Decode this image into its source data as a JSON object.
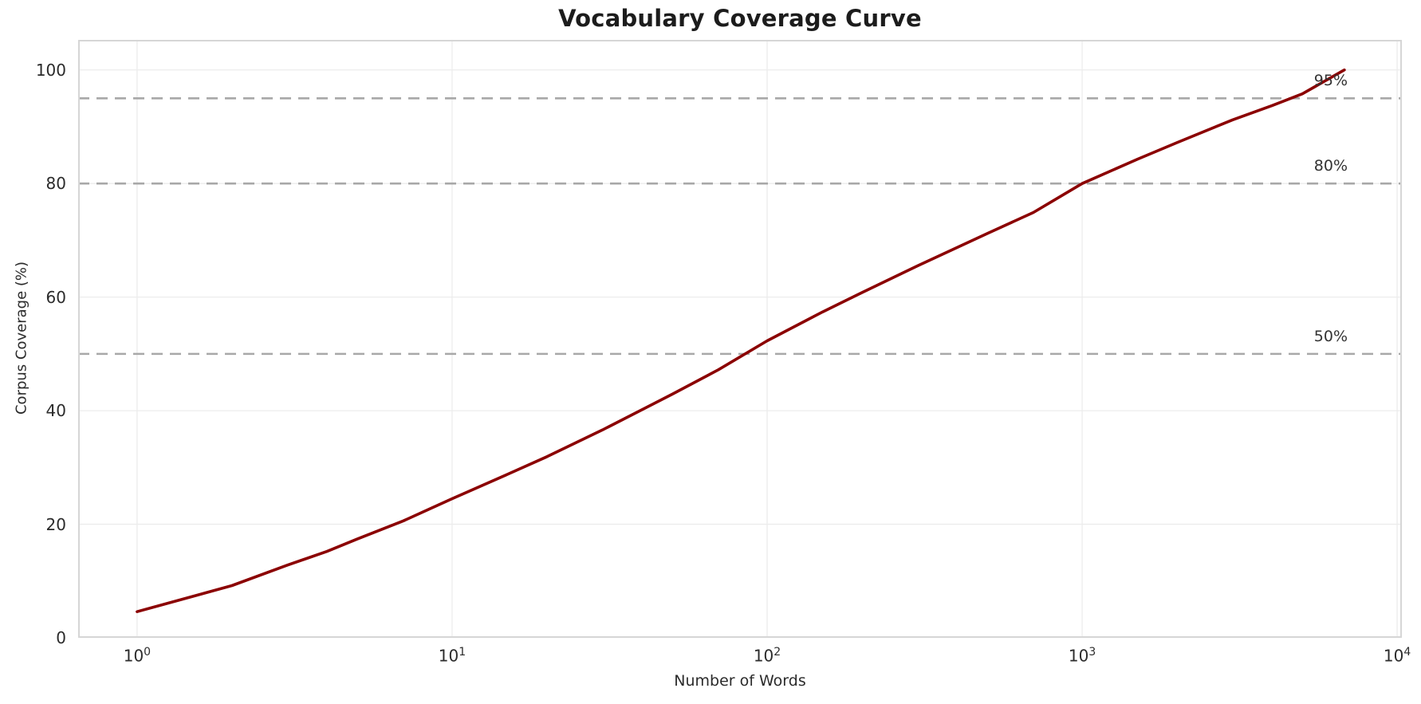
{
  "chart_data": {
    "type": "line",
    "title": "Vocabulary Coverage Curve",
    "xlabel": "Number of Words",
    "ylabel": "Corpus Coverage (%)",
    "x_scale": "log",
    "grid": true,
    "legend": "none",
    "xlim": [
      0.65,
      10350
    ],
    "ylim": [
      0,
      105.3
    ],
    "x_ticks": [
      {
        "value": 1,
        "base": "10",
        "exp": "0"
      },
      {
        "value": 10,
        "base": "10",
        "exp": "1"
      },
      {
        "value": 100,
        "base": "10",
        "exp": "2"
      },
      {
        "value": 1000,
        "base": "10",
        "exp": "3"
      },
      {
        "value": 10000,
        "base": "10",
        "exp": "4"
      }
    ],
    "y_ticks": [
      0,
      20,
      40,
      60,
      80,
      100
    ],
    "series": [
      {
        "name": "coverage",
        "color": "#8B0000",
        "points": [
          [
            1,
            4.6
          ],
          [
            2,
            9.2
          ],
          [
            3,
            12.8
          ],
          [
            4,
            15.2
          ],
          [
            5,
            17.4
          ],
          [
            7,
            20.6
          ],
          [
            10,
            24.5
          ],
          [
            15,
            28.8
          ],
          [
            20,
            31.9
          ],
          [
            30,
            36.6
          ],
          [
            50,
            42.9
          ],
          [
            70,
            47.2
          ],
          [
            100,
            52.3
          ],
          [
            150,
            57.4
          ],
          [
            200,
            60.8
          ],
          [
            300,
            65.5
          ],
          [
            500,
            71.2
          ],
          [
            700,
            74.9
          ],
          [
            1000,
            80.0
          ],
          [
            1500,
            84.3
          ],
          [
            2000,
            87.2
          ],
          [
            3000,
            91.2
          ],
          [
            4000,
            93.7
          ],
          [
            5000,
            95.8
          ],
          [
            6800,
            100.0
          ]
        ]
      }
    ],
    "thresholds": [
      {
        "value": 50,
        "label": "50%"
      },
      {
        "value": 80,
        "label": "80%"
      },
      {
        "value": 95,
        "label": "95%"
      }
    ],
    "colors": {
      "line": "#8B0000",
      "threshold": "#a8a8a8",
      "grid": "#ececec",
      "spine": "#d6d6d6",
      "text": "#2b2b2b",
      "title": "#1c1c1c",
      "background": "#ffffff"
    }
  }
}
